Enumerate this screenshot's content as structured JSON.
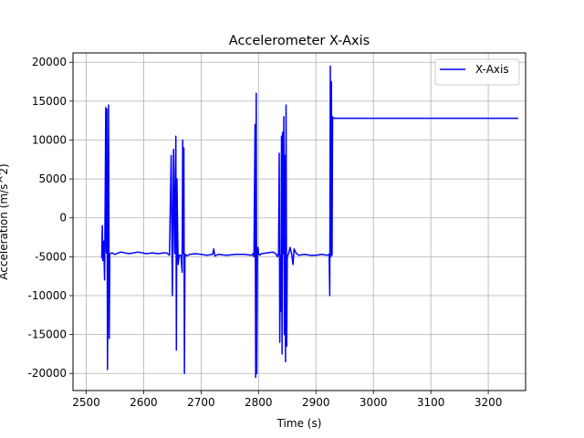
{
  "chart_data": {
    "type": "line",
    "title": "Accelerometer X-Axis",
    "xlabel": "Time (s)",
    "ylabel": "Acceleration (m/s^2)",
    "xlim": [
      2477,
      3265
    ],
    "ylim": [
      -22200,
      21200
    ],
    "xticks": [
      2500,
      2600,
      2700,
      2800,
      2900,
      3000,
      3100,
      3200
    ],
    "yticks": [
      -20000,
      -15000,
      -10000,
      -5000,
      0,
      5000,
      10000,
      15000,
      20000
    ],
    "grid": true,
    "legend": {
      "position": "top-right",
      "entries": [
        "X-Axis"
      ]
    },
    "series": [
      {
        "name": "X-Axis",
        "color": "#0000ff",
        "x": [
          2527,
          2528,
          2529,
          2530,
          2531,
          2532,
          2533,
          2534,
          2535,
          2536,
          2537,
          2538,
          2539,
          2540,
          2541,
          2542,
          2545,
          2550,
          2560,
          2575,
          2590,
          2605,
          2615,
          2625,
          2635,
          2640,
          2645,
          2648,
          2650,
          2652,
          2654,
          2656,
          2657,
          2658,
          2660,
          2662,
          2665,
          2667,
          2668,
          2669,
          2670,
          2671,
          2672,
          2673,
          2675,
          2680,
          2690,
          2700,
          2710,
          2720,
          2722,
          2724,
          2730,
          2745,
          2760,
          2775,
          2788,
          2790,
          2792,
          2794,
          2795,
          2796,
          2797,
          2798,
          2799,
          2800,
          2802,
          2805,
          2815,
          2825,
          2830,
          2833,
          2835,
          2836,
          2837,
          2838,
          2839,
          2840,
          2841,
          2842,
          2843,
          2844,
          2845,
          2846,
          2847,
          2848,
          2849,
          2850,
          2852,
          2855,
          2858,
          2860,
          2862,
          2865,
          2870,
          2880,
          2890,
          2900,
          2910,
          2920,
          2923,
          2924,
          2925,
          2926,
          2927,
          2928,
          2929,
          2930,
          2940,
          3000,
          3100,
          3200,
          3252
        ],
        "y": [
          -5200,
          -1000,
          -5500,
          -3000,
          -5000,
          -8000,
          1500,
          14200,
          -4500,
          14000,
          -19500,
          -4500,
          14500,
          -15500,
          -4700,
          -4600,
          -4500,
          -4700,
          -4400,
          -4600,
          -4400,
          -4600,
          -4500,
          -4600,
          -4500,
          -4500,
          -4800,
          8000,
          -10000,
          8800,
          -4600,
          10500,
          -17000,
          5000,
          -6000,
          -4800,
          -4800,
          -7000,
          10000,
          -4600,
          9000,
          -20000,
          -4700,
          -4700,
          -4900,
          -4700,
          -4600,
          -4700,
          -4800,
          -4700,
          -4000,
          -4900,
          -4700,
          -4800,
          -4700,
          -4700,
          -4800,
          -4600,
          -5000,
          12000,
          -20500,
          16000,
          -20000,
          -4500,
          -3800,
          -4600,
          -4800,
          -4600,
          -4500,
          -4400,
          -4600,
          -5000,
          -4500,
          8300,
          -16000,
          -4800,
          -12000,
          10500,
          -17500,
          11000,
          -4600,
          13000,
          -15000,
          8000,
          -18500,
          14500,
          -16500,
          -5000,
          -4700,
          -3800,
          -4800,
          -6000,
          -4000,
          -4500,
          -4800,
          -4700,
          -4800,
          -4800,
          -4700,
          -4800,
          -4700,
          -10000,
          19500,
          -5000,
          17500,
          -4800,
          13000,
          12800,
          12800,
          12800,
          12800,
          12800,
          12800
        ]
      }
    ]
  }
}
